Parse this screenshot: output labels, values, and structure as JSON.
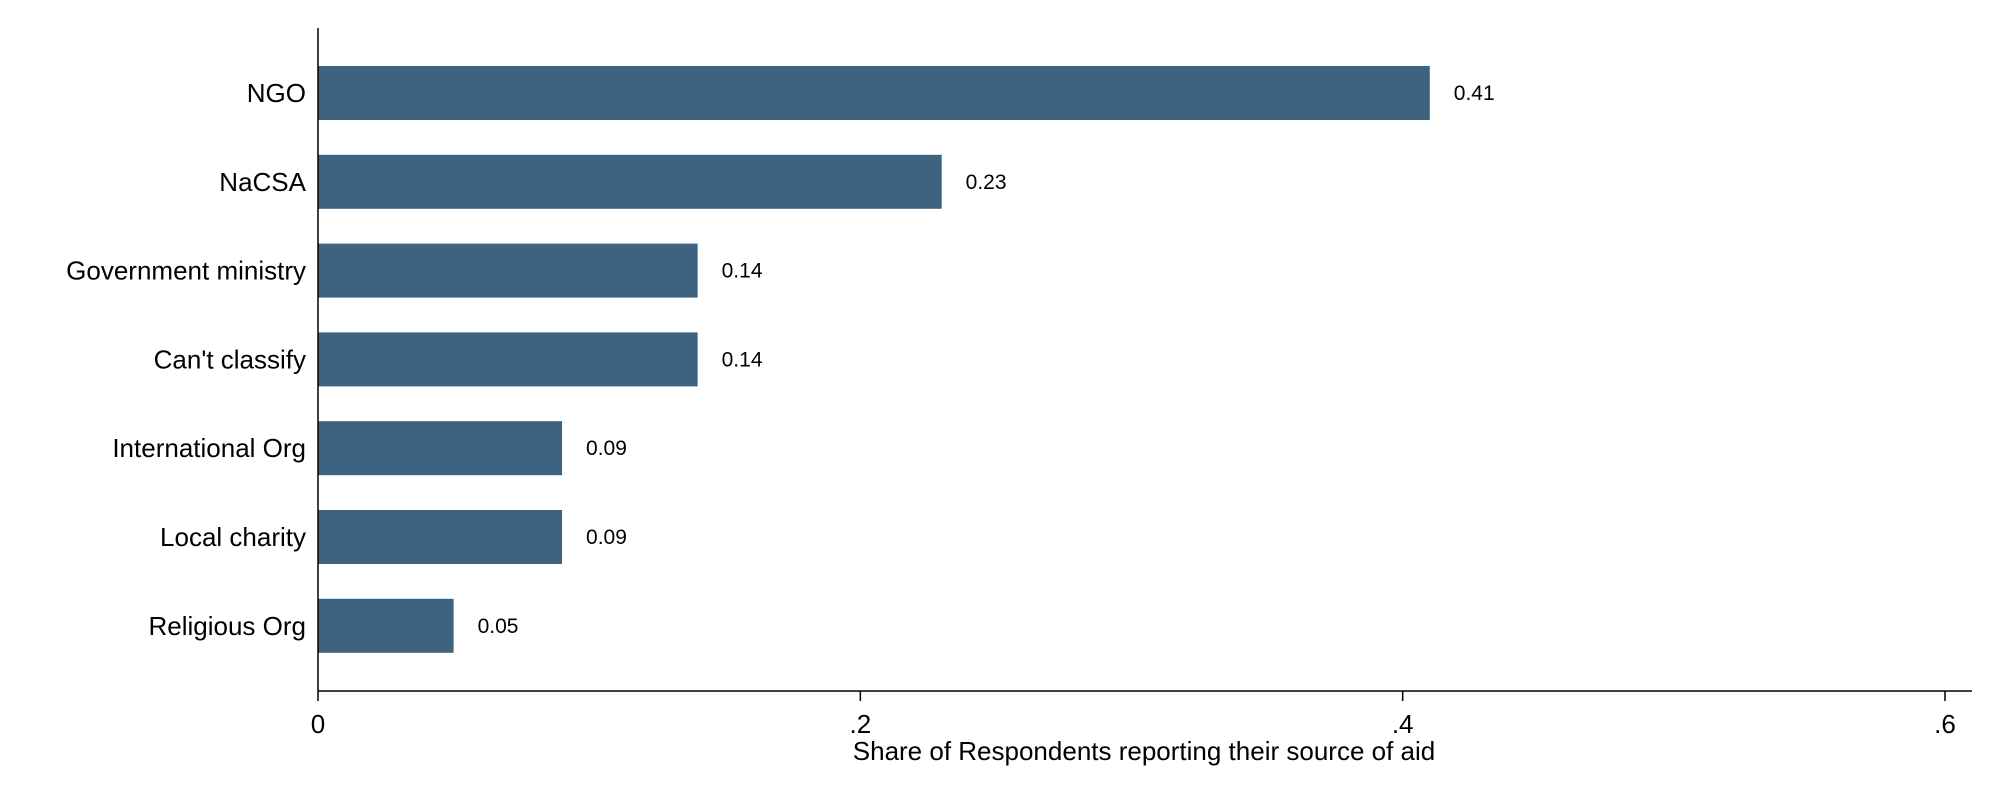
{
  "chart_data": {
    "type": "bar",
    "orientation": "horizontal",
    "categories": [
      "NGO",
      "NaCSA",
      "Government ministry",
      "Can't classify",
      "International Org",
      "Local charity",
      "Religious Org"
    ],
    "values": [
      0.41,
      0.23,
      0.14,
      0.14,
      0.09,
      0.09,
      0.05
    ],
    "data_labels": [
      "0.41",
      "0.23",
      "0.14",
      "0.14",
      "0.09",
      "0.09",
      "0.05"
    ],
    "title": "",
    "xlabel": "Share of Respondents reporting their source of aid",
    "ylabel": "",
    "xlim": [
      0,
      0.6
    ],
    "xticks": [
      0,
      0.2,
      0.4,
      0.6
    ],
    "xtick_labels": [
      "0",
      ".2",
      ".4",
      ".6"
    ],
    "grid": false,
    "legend": "none",
    "bar_color": "#3e6380"
  }
}
